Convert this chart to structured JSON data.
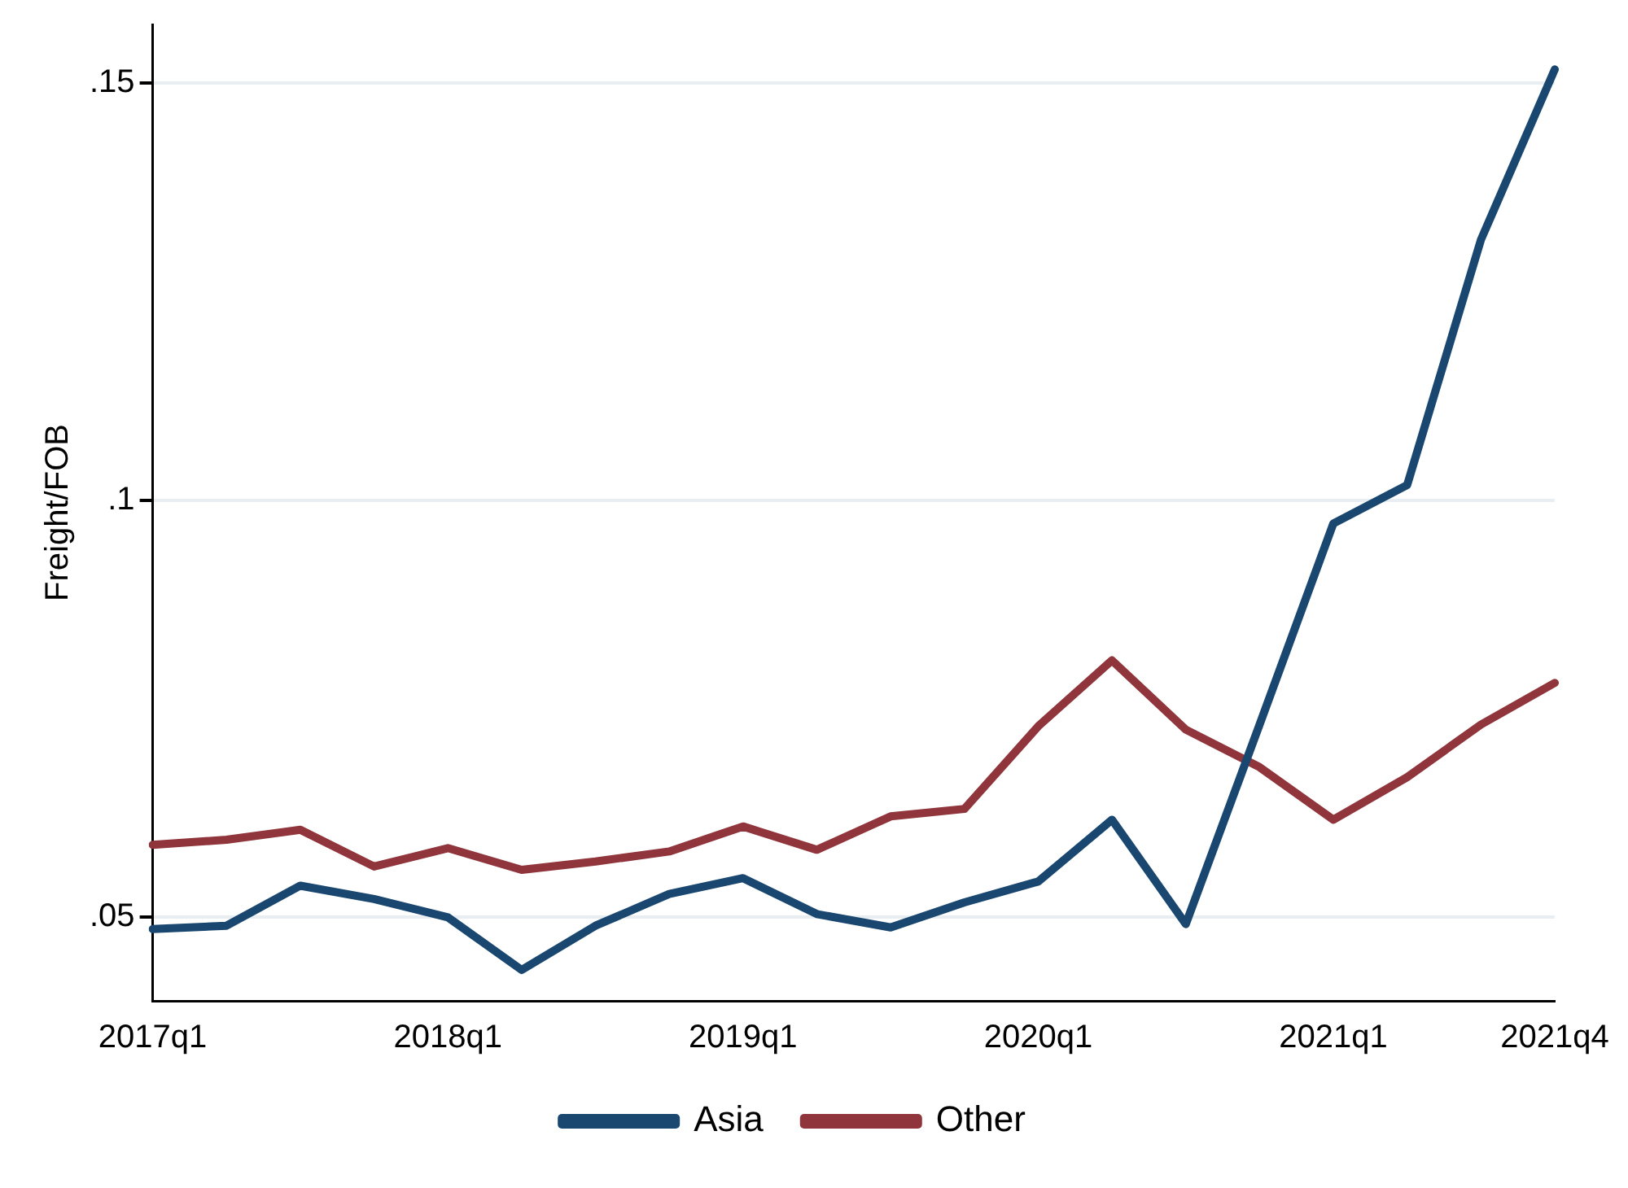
{
  "chart_data": {
    "type": "line",
    "ylabel": "Freight/FOB",
    "categories": [
      "2017q1",
      null,
      null,
      null,
      "2018q1",
      null,
      null,
      null,
      "2019q1",
      null,
      null,
      null,
      "2020q1",
      null,
      null,
      null,
      "2021q1",
      null,
      null,
      "2021q4"
    ],
    "series": [
      {
        "name": "Asia",
        "color": "#1a476f",
        "values": [
          0.0486,
          0.049,
          0.0538,
          0.0522,
          0.05,
          0.0437,
          0.049,
          0.0528,
          0.0547,
          0.0504,
          0.0488,
          0.0518,
          0.0543,
          0.0617,
          0.0492,
          0.0731,
          0.0972,
          0.1018,
          0.1312,
          0.1516
        ]
      },
      {
        "name": "Other",
        "color": "#90353b",
        "values": [
          0.0587,
          0.0593,
          0.0605,
          0.0561,
          0.0583,
          0.0557,
          0.0567,
          0.0579,
          0.0609,
          0.0581,
          0.0621,
          0.063,
          0.0729,
          0.0808,
          0.0725,
          0.068,
          0.0617,
          0.0668,
          0.0731,
          0.0781
        ]
      }
    ],
    "ylim": [
      0.04,
      0.157
    ],
    "yticks": [
      {
        "value": 0.05,
        "label": ".05"
      },
      {
        "value": 0.1,
        "label": ".1"
      },
      {
        "value": 0.15,
        "label": ".15"
      }
    ],
    "grid": "y",
    "legend": "bottom",
    "marker": "none",
    "line_style": "solid"
  }
}
